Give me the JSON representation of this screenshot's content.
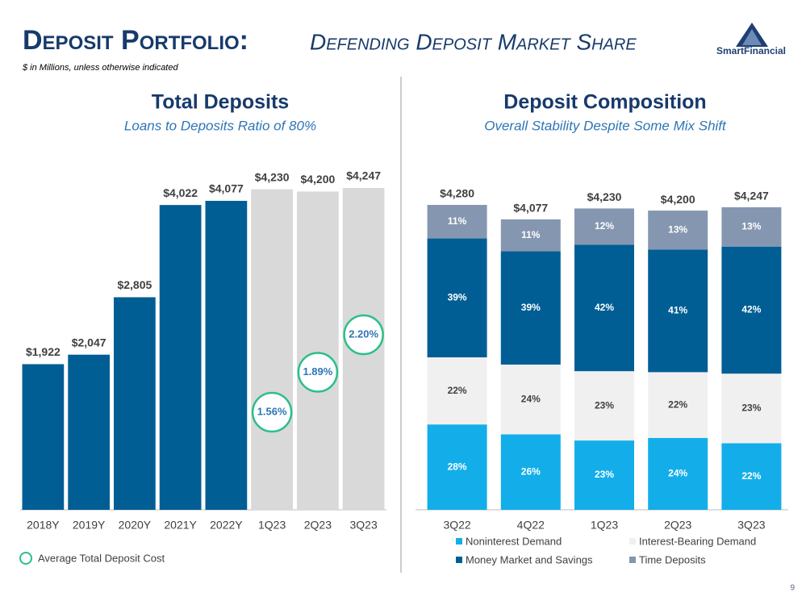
{
  "header": {
    "title": "Deposit Portfolio:",
    "subtitle": "Defending Deposit Market Share",
    "note": "$ in Millions, unless otherwise indicated",
    "logo": "SmartFinancial",
    "page_number": "9"
  },
  "chart_data": [
    {
      "type": "bar",
      "title": "Total Deposits",
      "subtitle": "Loans to Deposits Ratio of 80%",
      "categories": [
        "2018Y",
        "2019Y",
        "2020Y",
        "2021Y",
        "2022Y",
        "1Q23",
        "2Q23",
        "3Q23"
      ],
      "values": [
        1922,
        2047,
        2805,
        4022,
        4077,
        4230,
        4200,
        4247
      ],
      "value_labels": [
        "$1,922",
        "$2,047",
        "$2,805",
        "$4,022",
        "$4,077",
        "$4,230",
        "$4,200",
        "$4,247"
      ],
      "colors": [
        "#005e95",
        "#005e95",
        "#005e95",
        "#005e95",
        "#005e95",
        "#d9d9d9",
        "#d9d9d9",
        "#d9d9d9"
      ],
      "markers": {
        "name": "Average Total Deposit Cost",
        "color": "#2bbf88",
        "values": [
          null,
          null,
          null,
          null,
          null,
          1.56,
          1.89,
          2.2
        ],
        "value_labels": [
          null,
          null,
          null,
          null,
          null,
          "1.56%",
          "1.89%",
          "2.20%"
        ]
      }
    },
    {
      "type": "stacked-bar",
      "title": "Deposit Composition",
      "subtitle": "Overall Stability Despite Some Mix Shift",
      "categories": [
        "3Q22",
        "4Q22",
        "1Q23",
        "2Q23",
        "3Q23"
      ],
      "totals": {
        "values": [
          4280,
          4077,
          4230,
          4200,
          4247
        ],
        "value_labels": [
          "$4,280",
          "$4,077",
          "$4,230",
          "$4,200",
          "$4,247"
        ]
      },
      "series": [
        {
          "name": "Noninterest Demand",
          "color": "#13aee9",
          "values": [
            28,
            26,
            23,
            24,
            22
          ],
          "value_labels": [
            "28%",
            "26%",
            "23%",
            "24%",
            "22%"
          ]
        },
        {
          "name": "Interest-Bearing Demand",
          "color": "#f0f0f0",
          "values": [
            22,
            24,
            23,
            22,
            23
          ],
          "value_labels": [
            "22%",
            "24%",
            "23%",
            "22%",
            "23%"
          ]
        },
        {
          "name": "Money Market and Savings",
          "color": "#005e95",
          "values": [
            39,
            39,
            42,
            41,
            42
          ],
          "value_labels": [
            "39%",
            "39%",
            "42%",
            "41%",
            "42%"
          ]
        },
        {
          "name": "Time Deposits",
          "color": "#8597b0",
          "values": [
            11,
            11,
            12,
            13,
            13
          ],
          "value_labels": [
            "11%",
            "11%",
            "12%",
            "13%",
            "13%"
          ]
        }
      ]
    }
  ]
}
